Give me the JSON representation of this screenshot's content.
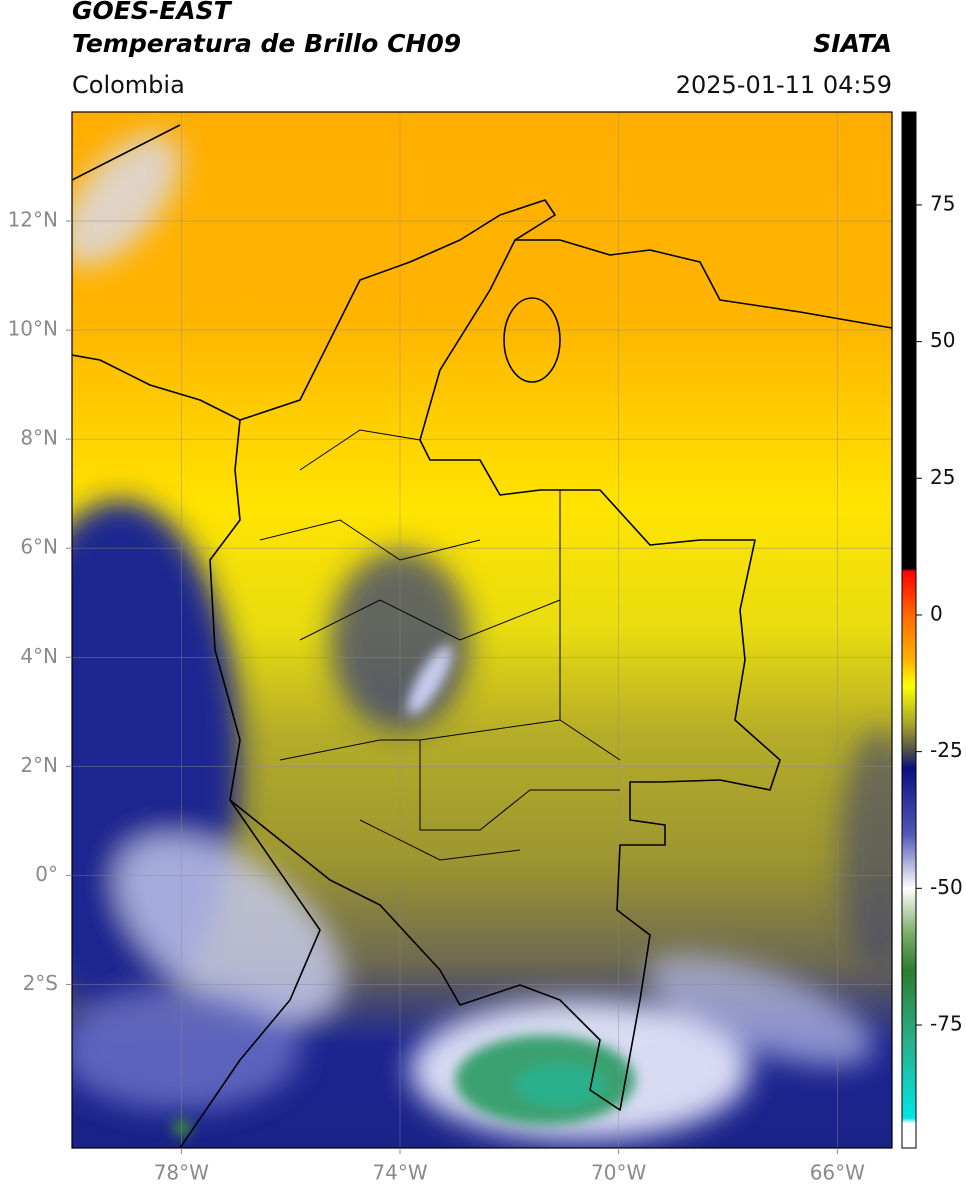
{
  "header": {
    "title": "GOES-EAST",
    "subtitle": "Temperatura de Brillo CH09",
    "source": "SIATA",
    "region": "Colombia",
    "datetime": "2025-01-11 04:59"
  },
  "map": {
    "lonlim": [
      -80,
      -65
    ],
    "latlim": [
      -5,
      14
    ],
    "grid": true,
    "xticks": [
      {
        "value": -78,
        "label": "78°W"
      },
      {
        "value": -74,
        "label": "74°W"
      },
      {
        "value": -70,
        "label": "70°W"
      },
      {
        "value": -66,
        "label": "66°W"
      }
    ],
    "yticks": [
      {
        "value": 12,
        "label": "12°N"
      },
      {
        "value": 10,
        "label": "10°N"
      },
      {
        "value": 8,
        "label": "8°N"
      },
      {
        "value": 6,
        "label": "6°N"
      },
      {
        "value": 4,
        "label": "4°N"
      },
      {
        "value": 2,
        "label": "2°N"
      },
      {
        "value": 0,
        "label": "0°"
      },
      {
        "value": -2,
        "label": "2°S"
      }
    ]
  },
  "colorbar": {
    "lim": [
      -97.5,
      92
    ],
    "ticks": [
      75,
      50,
      25,
      0,
      -25,
      -50,
      -75
    ],
    "colormap": [
      {
        "value": 92,
        "color": "#000000"
      },
      {
        "value": 8.5,
        "color": "#000000"
      },
      {
        "value": 8,
        "color": "#ff0000"
      },
      {
        "value": 0,
        "color": "#ff6a00"
      },
      {
        "value": -8,
        "color": "#ffb000"
      },
      {
        "value": -13,
        "color": "#ffff00"
      },
      {
        "value": -20,
        "color": "#a6a32a"
      },
      {
        "value": -25,
        "color": "#4d4d4d"
      },
      {
        "value": -28,
        "color": "#0a0f80"
      },
      {
        "value": -40,
        "color": "#4f58b5"
      },
      {
        "value": -50,
        "color": "#ffffff"
      },
      {
        "value": -58,
        "color": "#7fae6b"
      },
      {
        "value": -65,
        "color": "#2d7d2d"
      },
      {
        "value": -78,
        "color": "#2ab08c"
      },
      {
        "value": -92,
        "color": "#00e5e5"
      },
      {
        "value": -93,
        "color": "#ffffff"
      },
      {
        "value": -97.5,
        "color": "#ffffff"
      }
    ]
  }
}
